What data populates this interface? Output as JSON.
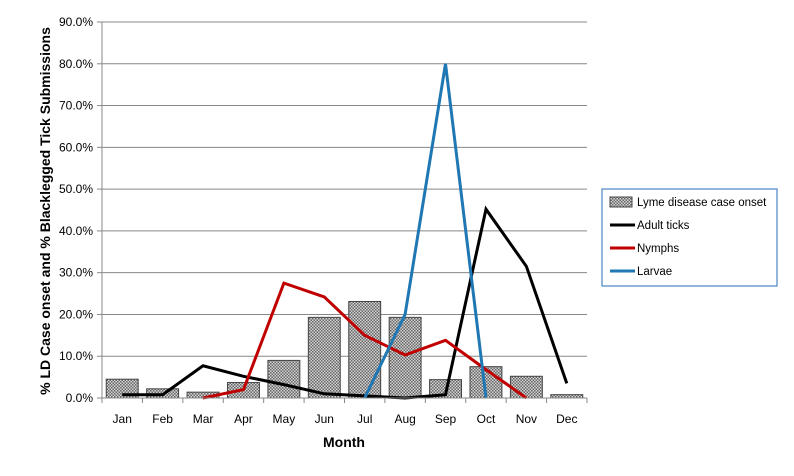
{
  "chart_data": {
    "type": "bar",
    "title": "",
    "xlabel": "Month",
    "ylabel": "% LD Case onset  and % Blacklegged Tick Submissions",
    "ylim": [
      0,
      90
    ],
    "yticks": [
      "0.0%",
      "10.0%",
      "20.0%",
      "30.0%",
      "40.0%",
      "50.0%",
      "60.0%",
      "70.0%",
      "80.0%",
      "90.0%"
    ],
    "grid": true,
    "legend_position": "right",
    "categories": [
      "Jan",
      "Feb",
      "Mar",
      "Apr",
      "May",
      "Jun",
      "Jul",
      "Aug",
      "Sep",
      "Oct",
      "Nov",
      "Dec"
    ],
    "series": [
      {
        "name": "Lyme disease case onset",
        "type": "bar",
        "color": "#b0b0b0",
        "values": [
          4.5,
          2.2,
          1.4,
          3.7,
          9.0,
          19.3,
          23.1,
          19.3,
          4.4,
          7.5,
          5.2,
          0.8
        ]
      },
      {
        "name": "Adult ticks",
        "type": "line",
        "color": "#000000",
        "values": [
          0.8,
          0.8,
          7.7,
          5.2,
          3.2,
          1.0,
          0.5,
          0.0,
          0.8,
          45.2,
          31.5,
          3.5
        ]
      },
      {
        "name": "Nymphs",
        "type": "line",
        "color": "#c00000",
        "values": [
          null,
          null,
          0.0,
          2.0,
          27.5,
          24.2,
          15.0,
          10.3,
          13.8,
          6.8,
          0.0,
          null
        ]
      },
      {
        "name": "Larvae",
        "type": "line",
        "color": "#1f77b4",
        "values": [
          null,
          null,
          null,
          null,
          null,
          null,
          0.0,
          20.0,
          80.0,
          0.0,
          null,
          null
        ]
      }
    ]
  }
}
